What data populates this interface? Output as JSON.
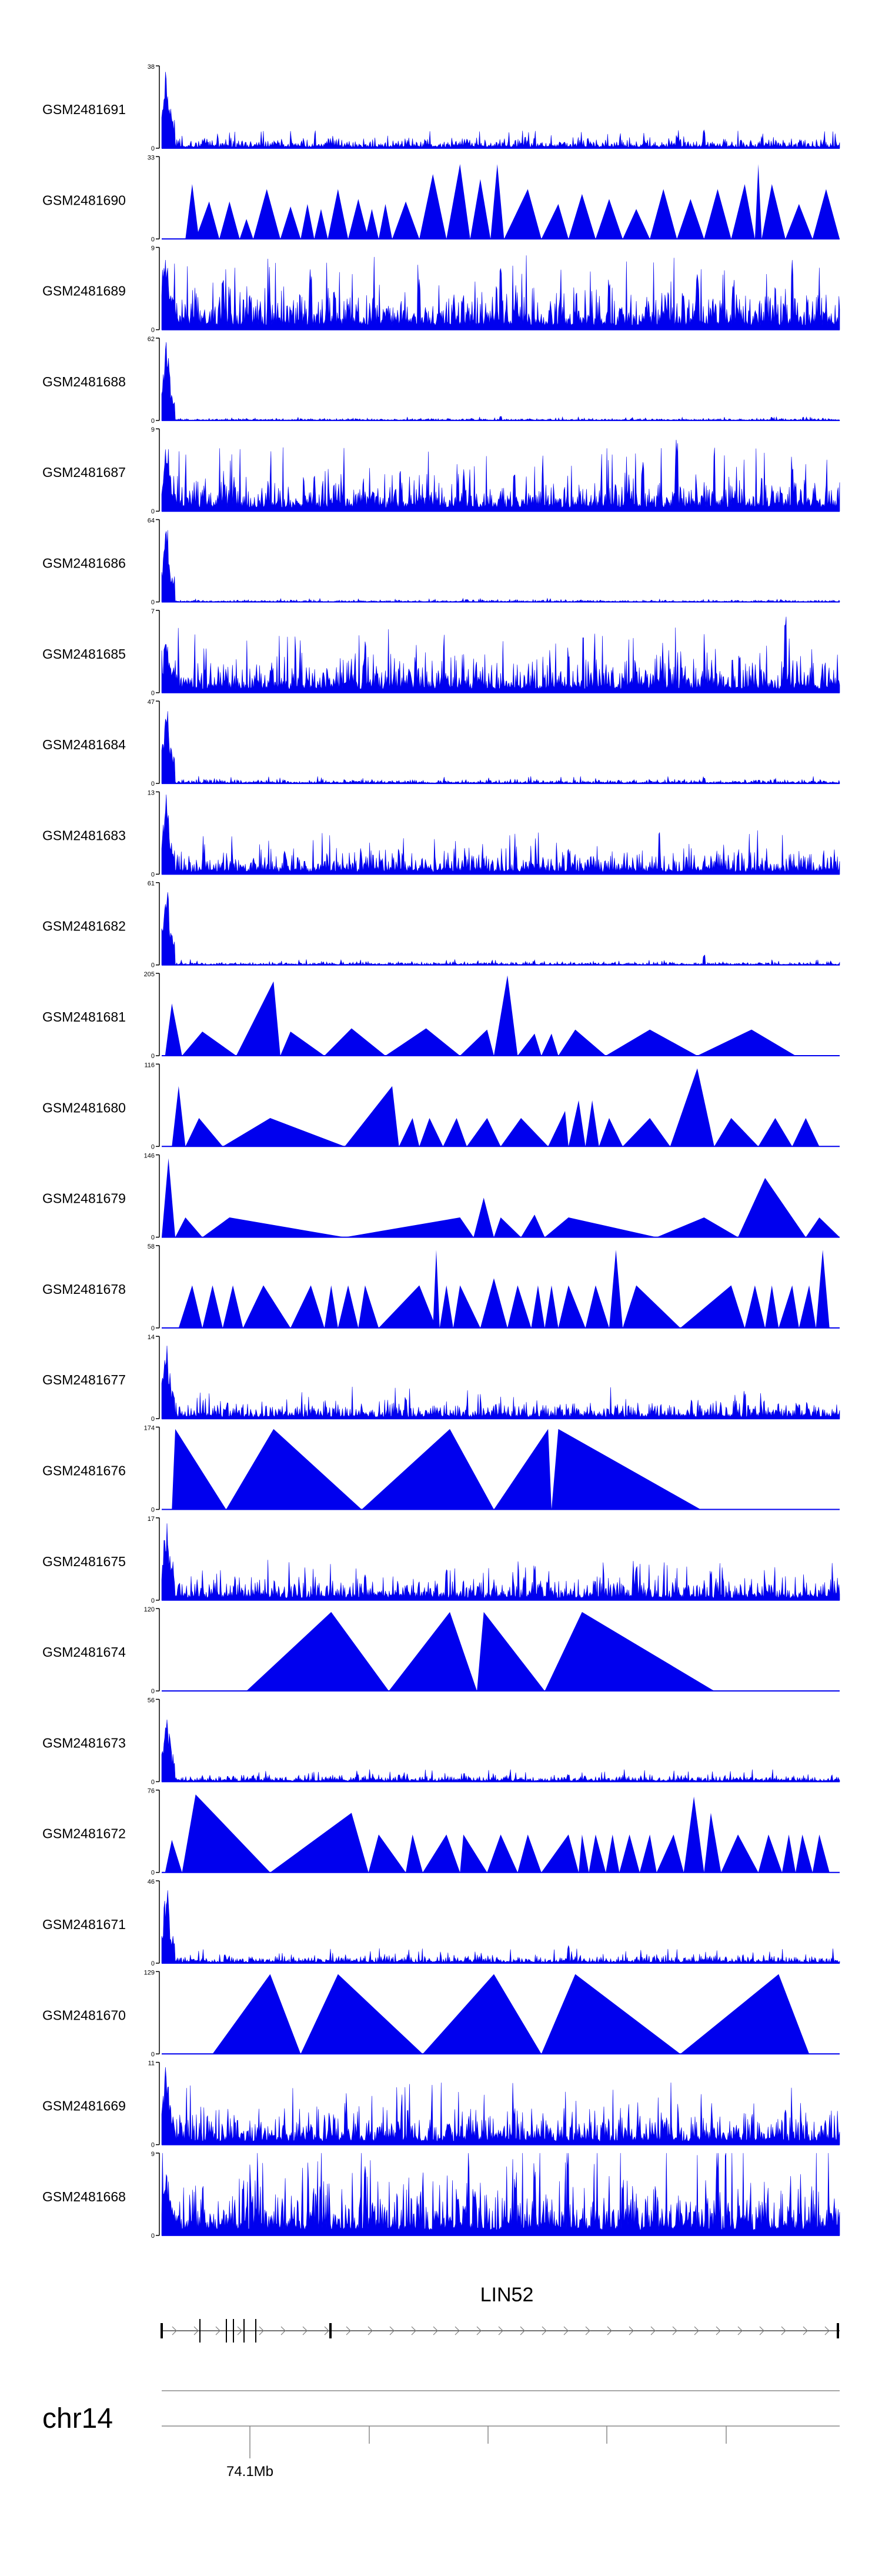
{
  "chart_data": {
    "type": "area",
    "title": "",
    "chromosome": "chr14",
    "x_tick_labels": [
      "74.1Mb"
    ],
    "gene": {
      "name": "LIN52"
    },
    "colors": {
      "signal": "#0000ee",
      "axis": "#000000",
      "gene_line": "#444444",
      "ruler": "#888888"
    },
    "tracks": [
      {
        "name": "GSM2481691",
        "ymin": 0,
        "ymax": 38,
        "shape": "spiky",
        "first_peak": 38,
        "background": 3,
        "spikes": [
          [
            0.8,
            9
          ],
          [
            0.76,
            6
          ],
          [
            0.55,
            5
          ]
        ]
      },
      {
        "name": "GSM2481690",
        "ymin": 0,
        "ymax": 33,
        "shape": "triangles",
        "peaks": [
          [
            0.035,
            0.045,
            0.055,
            22
          ],
          [
            0.05,
            0.07,
            0.085,
            15
          ],
          [
            0.085,
            0.1,
            0.115,
            15
          ],
          [
            0.115,
            0.125,
            0.135,
            8
          ],
          [
            0.135,
            0.155,
            0.175,
            20
          ],
          [
            0.175,
            0.19,
            0.205,
            13
          ],
          [
            0.205,
            0.215,
            0.225,
            14
          ],
          [
            0.225,
            0.235,
            0.245,
            12
          ],
          [
            0.245,
            0.26,
            0.275,
            20
          ],
          [
            0.275,
            0.29,
            0.305,
            16
          ],
          [
            0.3,
            0.31,
            0.32,
            12
          ],
          [
            0.32,
            0.33,
            0.34,
            14
          ],
          [
            0.34,
            0.36,
            0.38,
            15
          ],
          [
            0.38,
            0.4,
            0.42,
            26
          ],
          [
            0.42,
            0.44,
            0.455,
            30
          ],
          [
            0.455,
            0.47,
            0.485,
            24
          ],
          [
            0.485,
            0.495,
            0.505,
            30
          ],
          [
            0.505,
            0.54,
            0.56,
            20
          ],
          [
            0.56,
            0.585,
            0.6,
            14
          ],
          [
            0.6,
            0.62,
            0.64,
            18
          ],
          [
            0.64,
            0.66,
            0.68,
            16
          ],
          [
            0.68,
            0.7,
            0.72,
            12
          ],
          [
            0.72,
            0.74,
            0.76,
            20
          ],
          [
            0.76,
            0.78,
            0.8,
            16
          ],
          [
            0.8,
            0.82,
            0.84,
            20
          ],
          [
            0.84,
            0.86,
            0.875,
            22
          ],
          [
            0.875,
            0.88,
            0.885,
            30
          ],
          [
            0.885,
            0.9,
            0.92,
            22
          ],
          [
            0.92,
            0.94,
            0.96,
            14
          ],
          [
            0.96,
            0.98,
            1.0,
            20
          ]
        ]
      },
      {
        "name": "GSM2481689",
        "ymin": 0,
        "ymax": 9,
        "shape": "spiky",
        "first_peak": 9,
        "background": 3,
        "spikes": [
          [
            0.09,
            6
          ],
          [
            0.22,
            7
          ],
          [
            0.38,
            6
          ],
          [
            0.5,
            7
          ],
          [
            0.66,
            6
          ],
          [
            0.79,
            7
          ],
          [
            0.93,
            6
          ]
        ]
      },
      {
        "name": "GSM2481688",
        "ymin": 0,
        "ymax": 62,
        "shape": "spiky",
        "first_peak": 62,
        "background": 1,
        "spikes": [
          [
            0.5,
            3
          ]
        ]
      },
      {
        "name": "GSM2481687",
        "ymin": 0,
        "ymax": 9,
        "shape": "spiky",
        "first_peak": 8,
        "background": 2.5,
        "spikes": [
          [
            0.76,
            8
          ],
          [
            0.71,
            6
          ],
          [
            0.52,
            5
          ],
          [
            0.93,
            6
          ]
        ]
      },
      {
        "name": "GSM2481686",
        "ymin": 0,
        "ymax": 64,
        "shape": "spiky",
        "first_peak": 64,
        "background": 1,
        "spikes": [
          [
            0.45,
            2
          ]
        ]
      },
      {
        "name": "GSM2481685",
        "ymin": 0,
        "ymax": 7,
        "shape": "spiky",
        "first_peak": 5,
        "background": 2,
        "spikes": [
          [
            0.92,
            6.5
          ],
          [
            0.3,
            4
          ],
          [
            0.6,
            4
          ]
        ]
      },
      {
        "name": "GSM2481684",
        "ymin": 0,
        "ymax": 47,
        "shape": "spiky",
        "first_peak": 47,
        "background": 1.5,
        "spikes": [
          [
            0.8,
            4
          ],
          [
            0.27,
            2
          ]
        ]
      },
      {
        "name": "GSM2481683",
        "ymin": 0,
        "ymax": 13,
        "shape": "spiky",
        "first_peak": 13,
        "background": 2.5,
        "spikes": [
          [
            0.35,
            4
          ],
          [
            0.85,
            4
          ],
          [
            0.6,
            4
          ]
        ]
      },
      {
        "name": "GSM2481682",
        "ymin": 0,
        "ymax": 61,
        "shape": "spiky",
        "first_peak": 61,
        "background": 1.5,
        "spikes": [
          [
            0.8,
            8
          ]
        ]
      },
      {
        "name": "GSM2481681",
        "ymin": 0,
        "ymax": 205,
        "shape": "triangles",
        "peaks": [
          [
            0.005,
            0.015,
            0.03,
            130
          ],
          [
            0.03,
            0.06,
            0.11,
            60
          ],
          [
            0.11,
            0.165,
            0.175,
            185
          ],
          [
            0.175,
            0.19,
            0.24,
            60
          ],
          [
            0.24,
            0.28,
            0.33,
            68
          ],
          [
            0.33,
            0.39,
            0.44,
            68
          ],
          [
            0.44,
            0.48,
            0.49,
            65
          ],
          [
            0.49,
            0.51,
            0.525,
            200
          ],
          [
            0.525,
            0.55,
            0.56,
            55
          ],
          [
            0.56,
            0.575,
            0.585,
            55
          ],
          [
            0.585,
            0.61,
            0.655,
            65
          ],
          [
            0.655,
            0.72,
            0.79,
            65
          ],
          [
            0.79,
            0.87,
            0.935,
            65
          ]
        ]
      },
      {
        "name": "GSM2481680",
        "ymin": 0,
        "ymax": 116,
        "shape": "triangles",
        "peaks": [
          [
            0.015,
            0.025,
            0.035,
            85
          ],
          [
            0.035,
            0.055,
            0.09,
            40
          ],
          [
            0.09,
            0.16,
            0.27,
            40
          ],
          [
            0.27,
            0.34,
            0.35,
            85
          ],
          [
            0.35,
            0.37,
            0.38,
            40
          ],
          [
            0.38,
            0.395,
            0.415,
            40
          ],
          [
            0.415,
            0.435,
            0.45,
            40
          ],
          [
            0.45,
            0.48,
            0.5,
            40
          ],
          [
            0.5,
            0.53,
            0.57,
            40
          ],
          [
            0.57,
            0.595,
            0.6,
            50
          ],
          [
            0.6,
            0.615,
            0.625,
            65
          ],
          [
            0.625,
            0.635,
            0.645,
            65
          ],
          [
            0.645,
            0.66,
            0.68,
            40
          ],
          [
            0.68,
            0.72,
            0.75,
            40
          ],
          [
            0.75,
            0.79,
            0.815,
            110
          ],
          [
            0.815,
            0.84,
            0.88,
            40
          ],
          [
            0.88,
            0.905,
            0.93,
            40
          ],
          [
            0.93,
            0.95,
            0.97,
            40
          ]
        ]
      },
      {
        "name": "GSM2481679",
        "ymin": 0,
        "ymax": 146,
        "shape": "triangles",
        "peaks": [
          [
            0.0,
            0.01,
            0.02,
            140
          ],
          [
            0.02,
            0.035,
            0.06,
            35
          ],
          [
            0.06,
            0.1,
            0.27,
            35
          ],
          [
            0.27,
            0.44,
            0.46,
            35
          ],
          [
            0.46,
            0.475,
            0.49,
            70
          ],
          [
            0.49,
            0.5,
            0.53,
            35
          ],
          [
            0.53,
            0.55,
            0.565,
            40
          ],
          [
            0.565,
            0.6,
            0.73,
            35
          ],
          [
            0.73,
            0.8,
            0.85,
            35
          ],
          [
            0.85,
            0.89,
            0.95,
            105
          ],
          [
            0.95,
            0.97,
            1.0,
            35
          ]
        ]
      },
      {
        "name": "GSM2481678",
        "ymin": 0,
        "ymax": 58,
        "shape": "triangles",
        "peaks": [
          [
            0.025,
            0.045,
            0.06,
            30
          ],
          [
            0.06,
            0.075,
            0.09,
            30
          ],
          [
            0.09,
            0.105,
            0.12,
            30
          ],
          [
            0.12,
            0.15,
            0.19,
            30
          ],
          [
            0.19,
            0.22,
            0.24,
            30
          ],
          [
            0.24,
            0.25,
            0.26,
            30
          ],
          [
            0.26,
            0.275,
            0.29,
            30
          ],
          [
            0.29,
            0.3,
            0.32,
            30
          ],
          [
            0.32,
            0.38,
            0.405,
            30
          ],
          [
            0.4,
            0.405,
            0.41,
            55
          ],
          [
            0.41,
            0.42,
            0.43,
            30
          ],
          [
            0.43,
            0.44,
            0.47,
            30
          ],
          [
            0.47,
            0.49,
            0.51,
            35
          ],
          [
            0.51,
            0.525,
            0.545,
            30
          ],
          [
            0.545,
            0.555,
            0.565,
            30
          ],
          [
            0.565,
            0.575,
            0.585,
            30
          ],
          [
            0.585,
            0.6,
            0.625,
            30
          ],
          [
            0.625,
            0.64,
            0.66,
            30
          ],
          [
            0.66,
            0.67,
            0.68,
            55
          ],
          [
            0.68,
            0.7,
            0.765,
            30
          ],
          [
            0.765,
            0.84,
            0.86,
            30
          ],
          [
            0.86,
            0.875,
            0.89,
            30
          ],
          [
            0.89,
            0.9,
            0.91,
            30
          ],
          [
            0.91,
            0.93,
            0.94,
            30
          ],
          [
            0.94,
            0.955,
            0.965,
            30
          ],
          [
            0.965,
            0.975,
            0.985,
            55
          ]
        ]
      },
      {
        "name": "GSM2481677",
        "ymin": 0,
        "ymax": 14,
        "shape": "spiky",
        "first_peak": 14,
        "background": 2,
        "spikes": [
          [
            0.36,
            4
          ],
          [
            0.86,
            5
          ]
        ]
      },
      {
        "name": "GSM2481676",
        "ymin": 0,
        "ymax": 174,
        "shape": "triangles",
        "peaks": [
          [
            0.015,
            0.02,
            0.095,
            170
          ],
          [
            0.095,
            0.165,
            0.295,
            170
          ],
          [
            0.295,
            0.425,
            0.49,
            170
          ],
          [
            0.49,
            0.57,
            0.575,
            170
          ],
          [
            0.575,
            0.585,
            0.795,
            170
          ]
        ]
      },
      {
        "name": "GSM2481675",
        "ymin": 0,
        "ymax": 17,
        "shape": "spiky",
        "first_peak": 17,
        "background": 3,
        "spikes": [
          [
            0.3,
            6
          ],
          [
            0.42,
            7
          ],
          [
            0.55,
            8
          ],
          [
            0.7,
            7
          ],
          [
            0.81,
            7
          ]
        ]
      },
      {
        "name": "GSM2481674",
        "ymin": 0,
        "ymax": 120,
        "shape": "triangles",
        "peaks": [
          [
            0.125,
            0.25,
            0.335,
            115
          ],
          [
            0.335,
            0.425,
            0.465,
            115
          ],
          [
            0.465,
            0.475,
            0.565,
            115
          ],
          [
            0.565,
            0.62,
            0.815,
            115
          ]
        ]
      },
      {
        "name": "GSM2481673",
        "ymin": 0,
        "ymax": 56,
        "shape": "spiky",
        "first_peak": 56,
        "background": 3,
        "spikes": [
          [
            0.35,
            6
          ],
          [
            0.6,
            5
          ]
        ]
      },
      {
        "name": "GSM2481672",
        "ymin": 0,
        "ymax": 76,
        "shape": "triangles",
        "peaks": [
          [
            0.005,
            0.015,
            0.03,
            30
          ],
          [
            0.03,
            0.05,
            0.16,
            72
          ],
          [
            0.16,
            0.28,
            0.305,
            55
          ],
          [
            0.305,
            0.32,
            0.36,
            35
          ],
          [
            0.36,
            0.37,
            0.385,
            35
          ],
          [
            0.385,
            0.42,
            0.44,
            35
          ],
          [
            0.44,
            0.445,
            0.48,
            35
          ],
          [
            0.48,
            0.5,
            0.525,
            35
          ],
          [
            0.525,
            0.54,
            0.56,
            35
          ],
          [
            0.56,
            0.6,
            0.615,
            35
          ],
          [
            0.615,
            0.62,
            0.63,
            35
          ],
          [
            0.63,
            0.64,
            0.655,
            35
          ],
          [
            0.655,
            0.665,
            0.675,
            35
          ],
          [
            0.675,
            0.69,
            0.705,
            35
          ],
          [
            0.705,
            0.72,
            0.73,
            35
          ],
          [
            0.73,
            0.755,
            0.77,
            35
          ],
          [
            0.77,
            0.785,
            0.8,
            70
          ],
          [
            0.8,
            0.81,
            0.825,
            55
          ],
          [
            0.825,
            0.85,
            0.88,
            35
          ],
          [
            0.88,
            0.895,
            0.915,
            35
          ],
          [
            0.915,
            0.925,
            0.935,
            35
          ],
          [
            0.935,
            0.945,
            0.96,
            35
          ],
          [
            0.96,
            0.97,
            0.985,
            35
          ]
        ]
      },
      {
        "name": "GSM2481671",
        "ymin": 0,
        "ymax": 46,
        "shape": "spiky",
        "first_peak": 46,
        "background": 3,
        "spikes": [
          [
            0.6,
            10
          ]
        ]
      },
      {
        "name": "GSM2481670",
        "ymin": 0,
        "ymax": 129,
        "shape": "triangles",
        "peaks": [
          [
            0.075,
            0.16,
            0.205,
            125
          ],
          [
            0.205,
            0.26,
            0.385,
            125
          ],
          [
            0.385,
            0.49,
            0.56,
            125
          ],
          [
            0.56,
            0.61,
            0.765,
            125
          ],
          [
            0.765,
            0.91,
            0.955,
            125
          ]
        ]
      },
      {
        "name": "GSM2481669",
        "ymin": 0,
        "ymax": 11,
        "shape": "spiky",
        "first_peak": 11,
        "background": 3,
        "spikes": [
          [
            0.52,
            5
          ],
          [
            0.92,
            5
          ]
        ]
      },
      {
        "name": "GSM2481668",
        "ymin": 0,
        "ymax": 9,
        "shape": "spiky",
        "first_peak": 8,
        "background": 4,
        "spikes": [
          [
            0.3,
            8
          ],
          [
            0.55,
            8
          ],
          [
            0.82,
            8
          ],
          [
            0.68,
            7
          ]
        ]
      }
    ]
  }
}
